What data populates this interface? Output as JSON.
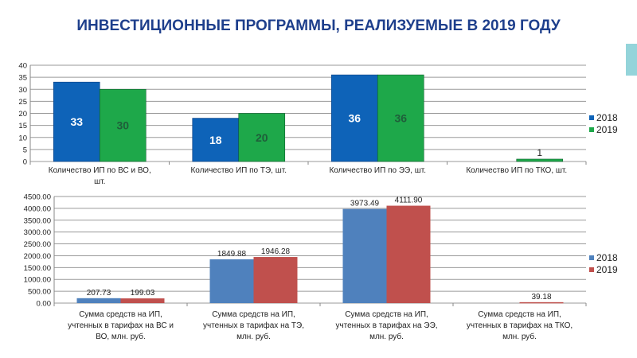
{
  "title": "ИНВЕСТИЦИОННЫЕ ПРОГРАММЫ, РЕАЛИЗУЕМЫЕ В 2019 ГОДУ",
  "chart_data": [
    {
      "type": "bar",
      "categories": [
        [
          "Количество ИП по ВС и ВО,",
          "шт."
        ],
        [
          "Количество ИП по ТЭ, шт."
        ],
        [
          "Количество ИП по ЭЭ, шт."
        ],
        [
          "Количество ИП по ТКО, шт."
        ]
      ],
      "series": [
        {
          "name": "2018",
          "values": [
            33,
            18,
            36,
            0
          ],
          "labels": [
            "33",
            "18",
            "36",
            ""
          ],
          "color": "#0e63b8",
          "label_color": "#ffffff"
        },
        {
          "name": "2019",
          "values": [
            30,
            20,
            36,
            1
          ],
          "labels": [
            "30",
            "20",
            "36",
            "1"
          ],
          "color": "#1ea84a",
          "label_color": "#1f5e3a"
        }
      ],
      "yticks": [
        "0",
        "5",
        "10",
        "15",
        "20",
        "25",
        "30",
        "35",
        "40"
      ],
      "ylim": [
        0,
        40
      ],
      "grid": true,
      "legend": "right"
    },
    {
      "type": "bar",
      "categories": [
        [
          "Сумма средств на ИП,",
          "учтенных в тарифах на ВС и",
          "ВО, млн. руб."
        ],
        [
          "Сумма средств на ИП,",
          "учтенных в тарифах на ТЭ,",
          "млн. руб."
        ],
        [
          "Сумма средств на ИП,",
          "учтенных в тарифах на ЭЭ,",
          "млн. руб."
        ],
        [
          "Сумма средств на ИП,",
          "учтенных в тарифах на ТКО,",
          "млн. руб."
        ]
      ],
      "series": [
        {
          "name": "2018",
          "values": [
            207.73,
            1849.88,
            3973.49,
            0
          ],
          "labels": [
            "207.73",
            "1849.88",
            "3973.49",
            ""
          ],
          "color": "#4f81bd"
        },
        {
          "name": "2019",
          "values": [
            199.03,
            1946.28,
            4111.9,
            39.18
          ],
          "labels": [
            "199.03",
            "1946.28",
            "4111.90",
            "39.18"
          ],
          "color": "#c0504d"
        }
      ],
      "yticks": [
        "0.00",
        "500.00",
        "1000.00",
        "1500.00",
        "2000.00",
        "2500.00",
        "3000.00",
        "3500.00",
        "4000.00",
        "4500.00"
      ],
      "ylim": [
        0,
        4500
      ],
      "grid": true,
      "legend": "right"
    }
  ]
}
